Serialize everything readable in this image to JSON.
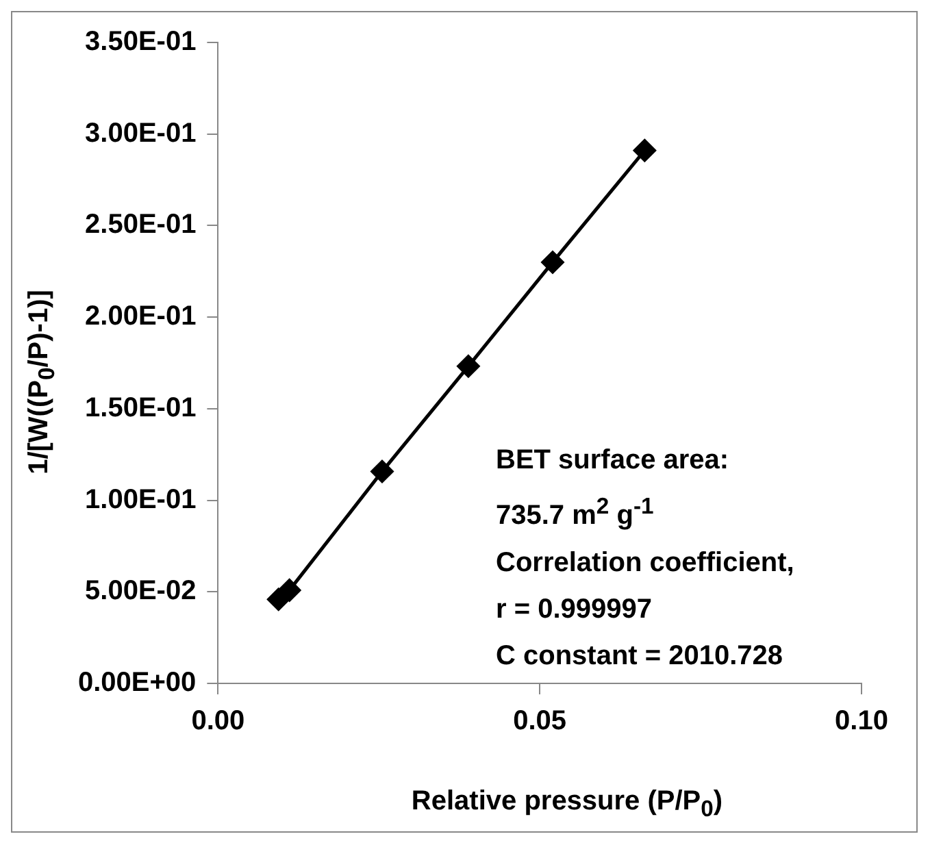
{
  "chart_data": {
    "type": "line",
    "xlabel": "Relative pressure (P/P$_{0}$)",
    "ylabel": "1/[W((P$_{0}$/P)-1)]",
    "x": [
      0.0094,
      0.0111,
      0.0255,
      0.0389,
      0.052,
      0.0663
    ],
    "series": [
      {
        "color": "#000000",
        "values": [
          0.0459,
          0.0509,
          0.1157,
          0.1732,
          0.23,
          0.291
        ]
      }
    ],
    "xlim": [
      0,
      0.1
    ],
    "xticks": [
      {
        "value": 0,
        "label": "0.00"
      },
      {
        "value": 0.05,
        "label": "0.05"
      },
      {
        "value": 0.1,
        "label": "0.10"
      }
    ],
    "ylim": [
      0,
      0.35
    ],
    "yticks": [
      {
        "value": 0,
        "label": "0.00E+00"
      },
      {
        "value": 0.05,
        "label": "5.00E-02"
      },
      {
        "value": 0.1,
        "label": "1.00E-01"
      },
      {
        "value": 0.15,
        "label": "1.50E-01"
      },
      {
        "value": 0.2,
        "label": "2.00E-01"
      },
      {
        "value": 0.25,
        "label": "2.50E-01"
      },
      {
        "value": 0.3,
        "label": "3.00E-01"
      },
      {
        "value": 0.35,
        "label": "3.50E-01"
      }
    ],
    "annotations": [
      "BET surface area:",
      "735.7 m$^{2}$ g$^{-1}$",
      "Correlation coefficient,",
      "r = 0.999997",
      "C constant = 2010.728"
    ],
    "grid": false,
    "legend": false,
    "marker": "diamond",
    "line_style": "solid"
  }
}
